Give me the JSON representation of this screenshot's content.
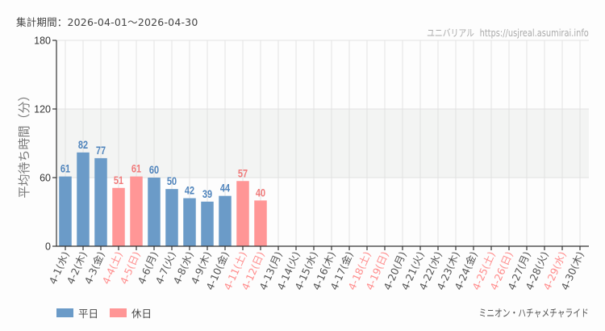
{
  "header": {
    "period_label": "集計期間：2026-04-01〜2026-04-30",
    "site_name": "ユニバリアル",
    "site_url": "https://usjreal.asumirai.info"
  },
  "legend": [
    {
      "label": "平日",
      "color": "#6b9bc8"
    },
    {
      "label": "休日",
      "color": "#ff9696"
    }
  ],
  "attraction_name": "ミニオン・ハチャメチャライド",
  "colors": {
    "weekday_bar": "#6b9bc8",
    "holiday_bar": "#ff9696",
    "weekday_text": "#4f84bc",
    "holiday_text": "#f07a7a",
    "weekday_tick_text": "#555555",
    "holiday_tick_text": "#ff8c8c",
    "band": "#f3f4f3",
    "grid": "#e2e2e2",
    "axis": "#333333"
  },
  "chart_data": {
    "type": "bar",
    "title": "",
    "xlabel": "",
    "ylabel": "平均待ち時間（分）",
    "ylim": [
      0,
      180
    ],
    "yticks": [
      0,
      60,
      120,
      180
    ],
    "highlight_band": [
      60,
      120
    ],
    "grid": true,
    "legend_position": "bottom-left",
    "categories": [
      "4-1(水)",
      "4-2(木)",
      "4-3(金)",
      "4-4(土)",
      "4-5(日)",
      "4-6(月)",
      "4-7(火)",
      "4-8(水)",
      "4-9(木)",
      "4-10(金)",
      "4-11(土)",
      "4-12(日)",
      "4-13(月)",
      "4-14(火)",
      "4-15(水)",
      "4-16(木)",
      "4-17(金)",
      "4-18(土)",
      "4-19(日)",
      "4-20(月)",
      "4-21(火)",
      "4-22(水)",
      "4-23(木)",
      "4-24(金)",
      "4-25(土)",
      "4-26(日)",
      "4-27(月)",
      "4-28(火)",
      "4-29(水)",
      "4-30(木)"
    ],
    "values": [
      61,
      82,
      77,
      51,
      61,
      60,
      50,
      42,
      39,
      44,
      57,
      40,
      null,
      null,
      null,
      null,
      null,
      null,
      null,
      null,
      null,
      null,
      null,
      null,
      null,
      null,
      null,
      null,
      null,
      null
    ],
    "holiday": [
      false,
      false,
      false,
      true,
      true,
      false,
      false,
      false,
      false,
      false,
      true,
      true,
      false,
      false,
      false,
      false,
      false,
      true,
      true,
      false,
      false,
      false,
      false,
      false,
      true,
      true,
      false,
      false,
      true,
      false
    ],
    "series": [
      {
        "name": "平日",
        "values": [
          61,
          82,
          77,
          null,
          null,
          60,
          50,
          42,
          39,
          44,
          null,
          null,
          null,
          null,
          null,
          null,
          null,
          null,
          null,
          null,
          null,
          null,
          null,
          null,
          null,
          null,
          null,
          null,
          null,
          null
        ]
      },
      {
        "name": "休日",
        "values": [
          null,
          null,
          null,
          51,
          61,
          null,
          null,
          null,
          null,
          null,
          57,
          40,
          null,
          null,
          null,
          null,
          null,
          null,
          null,
          null,
          null,
          null,
          null,
          null,
          null,
          null,
          null,
          null,
          null,
          null
        ]
      }
    ]
  }
}
